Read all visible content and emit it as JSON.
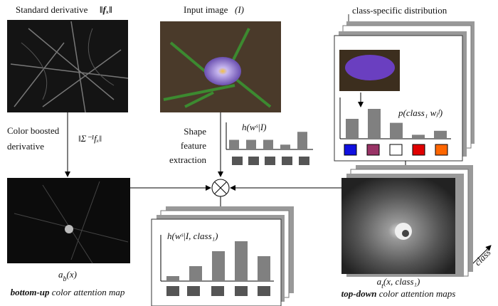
{
  "standard_derivative": {
    "label": "Standard derivative",
    "math": "‖fₓ‖"
  },
  "input_image": {
    "label": "Input image",
    "math": "(I)"
  },
  "color_boosted": {
    "lines": [
      "Color boosted",
      "derivative"
    ],
    "math": "‖Σ⁻¹fₓ‖"
  },
  "shape_feature": [
    "Shape",
    "feature",
    "extraction"
  ],
  "shape_histogram": {
    "label": "h(wˢ|I)",
    "values": [
      3,
      3,
      3,
      1.5,
      5.5
    ]
  },
  "class_distribution": {
    "title": "class-specific distribution",
    "label": "p(class₁ wⱼᶠ)",
    "values": [
      5,
      7.5,
      4,
      1,
      2
    ],
    "swatches": [
      "#1010e0",
      "#993366",
      "#ffffff",
      "#e00000",
      "#ff6600"
    ]
  },
  "class_histogram": {
    "label": "h(wˢ|I, class₁)",
    "values": [
      1,
      3,
      6,
      8,
      5
    ]
  },
  "bottom_up": {
    "symbol": [
      "a",
      "b",
      "(x)"
    ],
    "caption": [
      "bottom-up",
      " color attention map"
    ]
  },
  "top_down": {
    "symbol": [
      "a",
      "t",
      "(x, class₁)"
    ],
    "caption": [
      "top-down",
      " color attention maps"
    ]
  },
  "class_axis": "class"
}
